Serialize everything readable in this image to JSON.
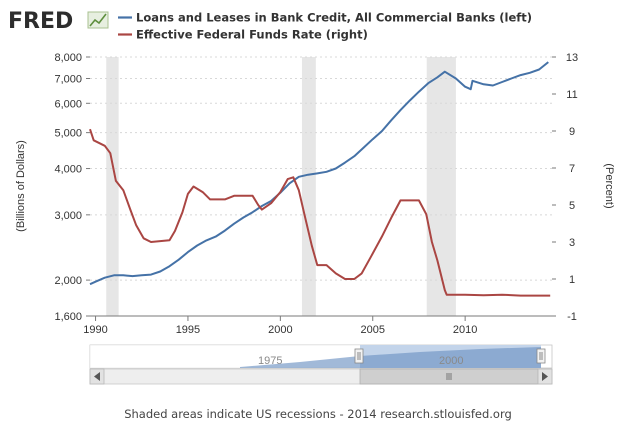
{
  "brand": {
    "logo": "FRED"
  },
  "legend": [
    {
      "label": "Loans and Leases in Bank Credit, All Commercial Banks (left)",
      "color": "#4572a7"
    },
    {
      "label": "Effective Federal Funds Rate (right)",
      "color": "#aa4643"
    }
  ],
  "navigator": {
    "labels": [
      "1975",
      "2000"
    ]
  },
  "footer": {
    "text": "Shaded areas indicate US recessions - 2014 research.stlouisfed.org"
  },
  "chart_data": {
    "type": "line",
    "xlabel": "",
    "x_ticks": [
      "1990",
      "1995",
      "2000",
      "2005",
      "2010"
    ],
    "xlim": [
      1989.7,
      2014.7
    ],
    "recessions": [
      [
        1990.58,
        1991.25
      ],
      [
        2001.17,
        2001.92
      ],
      [
        2007.92,
        2009.5
      ]
    ],
    "y_left": {
      "label": "(Billions of Dollars)",
      "scale": "log",
      "lim": [
        1600,
        8000
      ],
      "ticks": [
        "1,600",
        "2,000",
        "3,000",
        "4,000",
        "5,000",
        "6,000",
        "7,000",
        "8,000"
      ]
    },
    "y_right": {
      "label": "(Percent)",
      "lim": [
        -1,
        13
      ],
      "ticks": [
        "-1",
        "1",
        "3",
        "5",
        "7",
        "9",
        "11",
        "13"
      ]
    },
    "grid": true,
    "series": [
      {
        "name": "Loans and Leases in Bank Credit, All Commercial Banks (left)",
        "axis": "left",
        "color": "#4572a7",
        "points": [
          [
            1989.7,
            1950
          ],
          [
            1990.0,
            1980
          ],
          [
            1990.5,
            2030
          ],
          [
            1991.0,
            2060
          ],
          [
            1991.5,
            2060
          ],
          [
            1992.0,
            2050
          ],
          [
            1992.5,
            2060
          ],
          [
            1993.0,
            2070
          ],
          [
            1993.5,
            2110
          ],
          [
            1994.0,
            2180
          ],
          [
            1994.5,
            2270
          ],
          [
            1995.0,
            2380
          ],
          [
            1995.5,
            2480
          ],
          [
            1996.0,
            2560
          ],
          [
            1996.5,
            2620
          ],
          [
            1997.0,
            2720
          ],
          [
            1997.5,
            2840
          ],
          [
            1998.0,
            2950
          ],
          [
            1998.5,
            3050
          ],
          [
            1999.0,
            3170
          ],
          [
            1999.5,
            3270
          ],
          [
            2000.0,
            3440
          ],
          [
            2000.5,
            3650
          ],
          [
            2001.0,
            3800
          ],
          [
            2001.5,
            3850
          ],
          [
            2002.0,
            3880
          ],
          [
            2002.5,
            3920
          ],
          [
            2003.0,
            4000
          ],
          [
            2003.5,
            4150
          ],
          [
            2004.0,
            4320
          ],
          [
            2004.5,
            4550
          ],
          [
            2005.0,
            4800
          ],
          [
            2005.5,
            5050
          ],
          [
            2006.0,
            5400
          ],
          [
            2006.5,
            5750
          ],
          [
            2007.0,
            6100
          ],
          [
            2007.5,
            6450
          ],
          [
            2008.0,
            6800
          ],
          [
            2008.5,
            7050
          ],
          [
            2008.9,
            7300
          ],
          [
            2009.5,
            7000
          ],
          [
            2010.0,
            6650
          ],
          [
            2010.3,
            6550
          ],
          [
            2010.4,
            6900
          ],
          [
            2011.0,
            6750
          ],
          [
            2011.5,
            6700
          ],
          [
            2012.0,
            6850
          ],
          [
            2012.5,
            7000
          ],
          [
            2013.0,
            7150
          ],
          [
            2013.5,
            7250
          ],
          [
            2014.0,
            7400
          ],
          [
            2014.5,
            7750
          ]
        ]
      },
      {
        "name": "Effective Federal Funds Rate (right)",
        "axis": "right",
        "color": "#aa4643",
        "points": [
          [
            1989.7,
            9.1
          ],
          [
            1989.9,
            8.5
          ],
          [
            1990.5,
            8.2
          ],
          [
            1990.8,
            7.8
          ],
          [
            1991.1,
            6.3
          ],
          [
            1991.5,
            5.8
          ],
          [
            1991.9,
            4.7
          ],
          [
            1992.2,
            3.9
          ],
          [
            1992.6,
            3.2
          ],
          [
            1993.0,
            3.0
          ],
          [
            1993.5,
            3.05
          ],
          [
            1994.0,
            3.1
          ],
          [
            1994.3,
            3.6
          ],
          [
            1994.7,
            4.6
          ],
          [
            1995.0,
            5.6
          ],
          [
            1995.3,
            6.0
          ],
          [
            1995.8,
            5.7
          ],
          [
            1996.2,
            5.3
          ],
          [
            1996.6,
            5.3
          ],
          [
            1997.0,
            5.3
          ],
          [
            1997.5,
            5.5
          ],
          [
            1998.0,
            5.5
          ],
          [
            1998.5,
            5.5
          ],
          [
            1998.8,
            5.0
          ],
          [
            1999.0,
            4.75
          ],
          [
            1999.5,
            5.1
          ],
          [
            2000.0,
            5.7
          ],
          [
            2000.4,
            6.4
          ],
          [
            2000.7,
            6.5
          ],
          [
            2001.0,
            5.8
          ],
          [
            2001.3,
            4.5
          ],
          [
            2001.7,
            2.8
          ],
          [
            2002.0,
            1.75
          ],
          [
            2002.5,
            1.75
          ],
          [
            2003.0,
            1.3
          ],
          [
            2003.5,
            1.0
          ],
          [
            2004.0,
            1.0
          ],
          [
            2004.4,
            1.3
          ],
          [
            2004.9,
            2.2
          ],
          [
            2005.5,
            3.3
          ],
          [
            2006.0,
            4.3
          ],
          [
            2006.5,
            5.25
          ],
          [
            2007.0,
            5.25
          ],
          [
            2007.5,
            5.25
          ],
          [
            2007.9,
            4.5
          ],
          [
            2008.2,
            3.0
          ],
          [
            2008.5,
            2.0
          ],
          [
            2008.9,
            0.4
          ],
          [
            2009.0,
            0.15
          ],
          [
            2010.0,
            0.15
          ],
          [
            2011.0,
            0.12
          ],
          [
            2012.0,
            0.15
          ],
          [
            2013.0,
            0.1
          ],
          [
            2014.0,
            0.1
          ],
          [
            2014.6,
            0.1
          ]
        ]
      }
    ]
  }
}
